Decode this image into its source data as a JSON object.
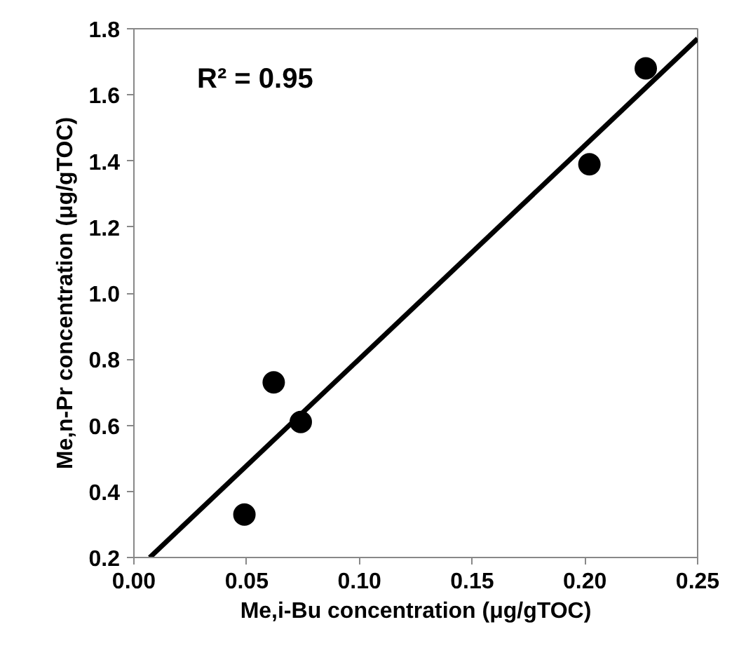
{
  "chart_data": {
    "type": "scatter",
    "xlabel": "Me,i-Bu concentration (μg/gTOC)",
    "ylabel": "Me,n-Pr concentration (μg/gTOC)",
    "x": [
      0.049,
      0.062,
      0.074,
      0.202,
      0.227
    ],
    "series": [
      {
        "color": "#000000",
        "marker": "circle",
        "values": [
          0.33,
          0.73,
          0.61,
          1.39,
          1.68
        ]
      },
      {
        "type": "line",
        "color": "#000000",
        "x": [
          0.007,
          0.25
        ],
        "values": [
          0.2,
          1.77
        ]
      }
    ],
    "xlim": [
      0,
      0.25
    ],
    "ylim": [
      0.2,
      1.8
    ],
    "xticks": [
      {
        "value": 0,
        "label": "0.00"
      },
      {
        "value": 0.05,
        "label": "0.05"
      },
      {
        "value": 0.1,
        "label": "0.10"
      },
      {
        "value": 0.15,
        "label": "0.15"
      },
      {
        "value": 0.2,
        "label": "0.20"
      },
      {
        "value": 0.25,
        "label": "0.25"
      }
    ],
    "yticks": [
      0.2,
      0.4,
      0.6,
      0.8,
      {
        "value": 1.0,
        "label": "1.0"
      },
      1.2,
      1.4,
      1.6,
      1.8
    ],
    "annotations": [
      "R² = 0.95"
    ]
  }
}
